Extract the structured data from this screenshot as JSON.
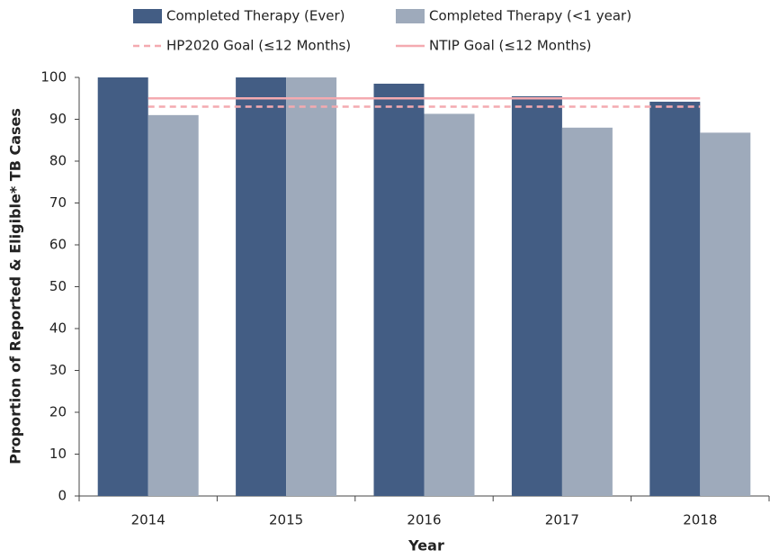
{
  "chart_data": {
    "type": "bar",
    "x_label": "Year",
    "y_label": "Proportion of Reported & Eligible* TB Cases",
    "categories": [
      "2014",
      "2015",
      "2016",
      "2017",
      "2018"
    ],
    "series": [
      {
        "name": "Completed Therapy (Ever)",
        "type": "bar",
        "color": "#435d84",
        "values": [
          100,
          100,
          98.5,
          95.5,
          94.2
        ]
      },
      {
        "name": "Completed Therapy (<1 year)",
        "type": "bar",
        "color": "#9eaabb",
        "values": [
          91,
          100,
          91.3,
          88,
          86.8
        ]
      },
      {
        "name": "HP2020 Goal (≤12 Months)",
        "type": "line",
        "line_style": "dashed",
        "color": "#f4aab0",
        "values": [
          93,
          93,
          93,
          93,
          93
        ]
      },
      {
        "name": "NTIP Goal (≤12 Months)",
        "type": "line",
        "line_style": "solid",
        "color": "#f4aab0",
        "values": [
          95,
          95,
          95,
          95,
          95
        ]
      }
    ],
    "ylim": [
      0,
      100
    ],
    "yticks": [
      0,
      10,
      20,
      30,
      40,
      50,
      60,
      70,
      80,
      90,
      100
    ],
    "grid": false
  }
}
